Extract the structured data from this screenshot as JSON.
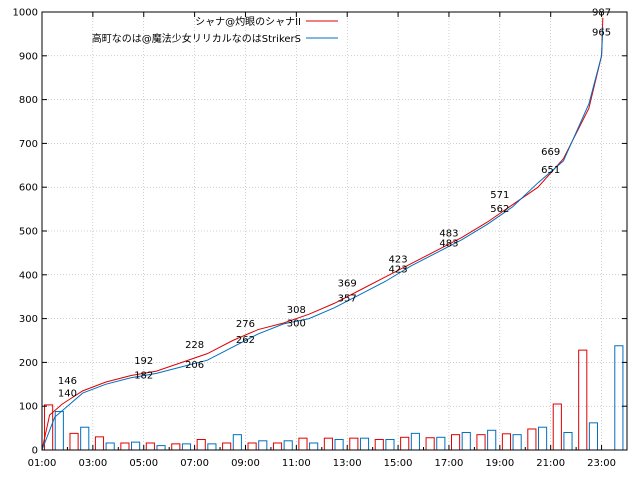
{
  "chart_data": {
    "type": "line",
    "title": "",
    "xlabel": "",
    "ylabel": "",
    "ylim": [
      0,
      1000
    ],
    "y_ticks": [
      "0",
      "100",
      "200",
      "300",
      "400",
      "500",
      "600",
      "700",
      "800",
      "900",
      "1000"
    ],
    "x_ticks": [
      "01:00",
      "03:00",
      "05:00",
      "07:00",
      "09:00",
      "11:00",
      "13:00",
      "15:00",
      "17:00",
      "19:00",
      "21:00",
      "23:00"
    ],
    "grid": true,
    "legend_position": "top-right",
    "series": [
      {
        "name": "シャナ@灼眼のシャナII",
        "color": "#e00000",
        "bar_values": [
          103,
          38,
          30,
          16,
          16,
          14,
          24,
          16,
          16,
          16,
          27,
          27,
          27,
          24,
          29,
          28,
          35,
          35,
          37,
          48,
          105,
          228
        ],
        "cumulative": [
          [
            1.0,
            0
          ],
          [
            1.3,
            80
          ],
          [
            1.8,
            105
          ],
          [
            2.6,
            135
          ],
          [
            3.5,
            155
          ],
          [
            4.5,
            170
          ],
          [
            5.5,
            180
          ],
          [
            6.5,
            200
          ],
          [
            7.5,
            220
          ],
          [
            8.5,
            250
          ],
          [
            9.5,
            275
          ],
          [
            10.5,
            290
          ],
          [
            11.5,
            310
          ],
          [
            12.5,
            335
          ],
          [
            13.5,
            365
          ],
          [
            14.5,
            395
          ],
          [
            15.5,
            425
          ],
          [
            16.5,
            455
          ],
          [
            17.5,
            485
          ],
          [
            18.5,
            520
          ],
          [
            19.5,
            560
          ],
          [
            20.5,
            600
          ],
          [
            21.5,
            665
          ],
          [
            22.5,
            780
          ],
          [
            23.0,
            900
          ],
          [
            23.05,
            987
          ]
        ],
        "labels": [
          {
            "x": 3.0,
            "y": 146,
            "text": "146"
          },
          {
            "x": 6.0,
            "y": 192,
            "text": "192"
          },
          {
            "x": 8.0,
            "y": 228,
            "text": "228"
          },
          {
            "x": 10.0,
            "y": 276,
            "text": "276"
          },
          {
            "x": 12.0,
            "y": 308,
            "text": "308"
          },
          {
            "x": 14.0,
            "y": 369,
            "text": "369"
          },
          {
            "x": 16.0,
            "y": 423,
            "text": "423"
          },
          {
            "x": 18.0,
            "y": 483,
            "text": "483"
          },
          {
            "x": 20.0,
            "y": 571,
            "text": "571"
          },
          {
            "x": 22.0,
            "y": 669,
            "text": "669"
          },
          {
            "x": 24.0,
            "y": 987,
            "text": "987"
          }
        ]
      },
      {
        "name": "高町なのは@魔法少女リリカルなのはStrikerS",
        "color": "#0070c0",
        "bar_values": [
          88,
          52,
          16,
          18,
          10,
          14,
          14,
          35,
          21,
          21,
          16,
          24,
          27,
          24,
          38,
          29,
          40,
          45,
          35,
          52,
          40,
          62,
          238
        ],
        "cumulative": [
          [
            1.0,
            0
          ],
          [
            1.5,
            75
          ],
          [
            2.0,
            100
          ],
          [
            2.6,
            130
          ],
          [
            3.5,
            150
          ],
          [
            4.5,
            165
          ],
          [
            5.5,
            175
          ],
          [
            6.5,
            190
          ],
          [
            7.5,
            205
          ],
          [
            8.5,
            235
          ],
          [
            9.5,
            265
          ],
          [
            10.5,
            288
          ],
          [
            11.5,
            300
          ],
          [
            12.5,
            325
          ],
          [
            13.5,
            355
          ],
          [
            14.5,
            385
          ],
          [
            15.5,
            420
          ],
          [
            16.5,
            450
          ],
          [
            17.5,
            480
          ],
          [
            18.5,
            515
          ],
          [
            19.5,
            555
          ],
          [
            20.5,
            610
          ],
          [
            21.5,
            660
          ],
          [
            22.5,
            790
          ],
          [
            23.0,
            900
          ],
          [
            23.05,
            965
          ]
        ],
        "labels": [
          {
            "x": 3.0,
            "y": 140,
            "text": "140"
          },
          {
            "x": 6.0,
            "y": 182,
            "text": "182"
          },
          {
            "x": 8.0,
            "y": 206,
            "text": "206"
          },
          {
            "x": 10.0,
            "y": 262,
            "text": "262"
          },
          {
            "x": 12.0,
            "y": 300,
            "text": "300"
          },
          {
            "x": 14.0,
            "y": 357,
            "text": "357"
          },
          {
            "x": 16.0,
            "y": 423,
            "text": "423"
          },
          {
            "x": 18.0,
            "y": 483,
            "text": "483"
          },
          {
            "x": 20.0,
            "y": 562,
            "text": "562"
          },
          {
            "x": 22.0,
            "y": 651,
            "text": "651"
          },
          {
            "x": 24.0,
            "y": 965,
            "text": "965"
          }
        ]
      }
    ]
  }
}
